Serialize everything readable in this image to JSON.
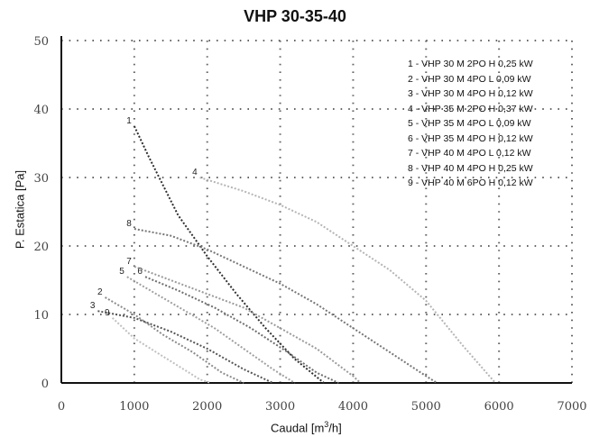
{
  "chart_data": {
    "type": "line",
    "title": "VHP 30-35-40",
    "xlabel": "Caudal",
    "xlabel_unit_base": "[m",
    "xlabel_unit_sup": "3",
    "xlabel_unit_tail": "/h]",
    "ylabel": "P. Estatica [Pa]",
    "xlim": [
      0,
      7000
    ],
    "ylim": [
      0,
      50
    ],
    "xticks": [
      0,
      1000,
      2000,
      3000,
      4000,
      5000,
      6000,
      7000
    ],
    "yticks": [
      0,
      10,
      20,
      30,
      40,
      50
    ],
    "ytick_labels": [
      "0",
      "10",
      "20",
      "30",
      "40",
      "50"
    ],
    "xtick_labels": [
      "0",
      "1000",
      "2000",
      "3000",
      "4000",
      "5000",
      "6000",
      "7000"
    ],
    "grid": true,
    "legend_position": "top-right",
    "series": [
      {
        "label": "1",
        "name": "1 - VHP 30 M 2PO H 0,25 kW",
        "color": "#2f2f2f",
        "x": [
          1000,
          1200,
          1600,
          2000,
          2400,
          2800,
          3200,
          3600
        ],
        "y": [
          37.5,
          33,
          24.5,
          18.5,
          13,
          8,
          3.5,
          0
        ]
      },
      {
        "label": "2",
        "name": "2 - VHP 30 M 4PO L 0,09 kW",
        "color": "#8c8c8c",
        "x": [
          600,
          1000,
          1400,
          1800,
          2200,
          2500
        ],
        "y": [
          12.5,
          10,
          7,
          4.5,
          1.5,
          0
        ]
      },
      {
        "label": "3",
        "name": "3 - VHP 30 M 4PO H 0,12 kW",
        "color": "#555555",
        "x": [
          500,
          1000,
          1500,
          2000,
          2500,
          2900
        ],
        "y": [
          10.5,
          9.5,
          7.5,
          5,
          2,
          0
        ]
      },
      {
        "label": "4",
        "name": "4 - VHP 35 M 2PO H 0,37 kW",
        "color": "#b5b5b5",
        "x": [
          1900,
          2500,
          3000,
          3500,
          4000,
          4500,
          5000,
          5500,
          5950
        ],
        "y": [
          30,
          28,
          26,
          23.5,
          20,
          16.5,
          12,
          5.5,
          0
        ]
      },
      {
        "label": "5",
        "name": "5 - VHP 35 M 4PO L 0,09 kW",
        "color": "#a0a0a0",
        "x": [
          900,
          1300,
          1700,
          2100,
          2500,
          2900,
          3200
        ],
        "y": [
          15.5,
          13,
          10.5,
          8,
          5,
          2,
          0
        ]
      },
      {
        "label": "6",
        "name": "6 - VHP 35 M 4PO H 0,12 kW",
        "color": "#6e6e6e",
        "x": [
          1150,
          1600,
          2100,
          2600,
          3100,
          3500,
          3800
        ],
        "y": [
          15.5,
          13.5,
          11,
          8,
          4.5,
          1.5,
          0
        ]
      },
      {
        "label": "7",
        "name": "7 - VHP 40 M 4PO L 0,12 kW",
        "color": "#9a9a9a",
        "x": [
          1000,
          1500,
          2000,
          2500,
          3000,
          3500,
          4000,
          4100
        ],
        "y": [
          17,
          15,
          13,
          11,
          8,
          5,
          1,
          0
        ]
      },
      {
        "label": "8",
        "name": "8 - VHP 40 M 4PO H 0,25 kW",
        "color": "#777777",
        "x": [
          1000,
          1500,
          2000,
          2500,
          3000,
          3500,
          4000,
          4500,
          5000,
          5150
        ],
        "y": [
          22.5,
          21.5,
          19.5,
          17,
          14.5,
          11.5,
          8,
          4.5,
          1,
          0
        ]
      },
      {
        "label": "9",
        "name": "9 - VHP 40 M 6PO H 0,12 kW",
        "color": "#c0c0c0",
        "x": [
          700,
          1000,
          1300,
          1600,
          1900,
          2050
        ],
        "y": [
          9.5,
          6.5,
          4.5,
          2.5,
          0.5,
          0
        ]
      }
    ]
  }
}
